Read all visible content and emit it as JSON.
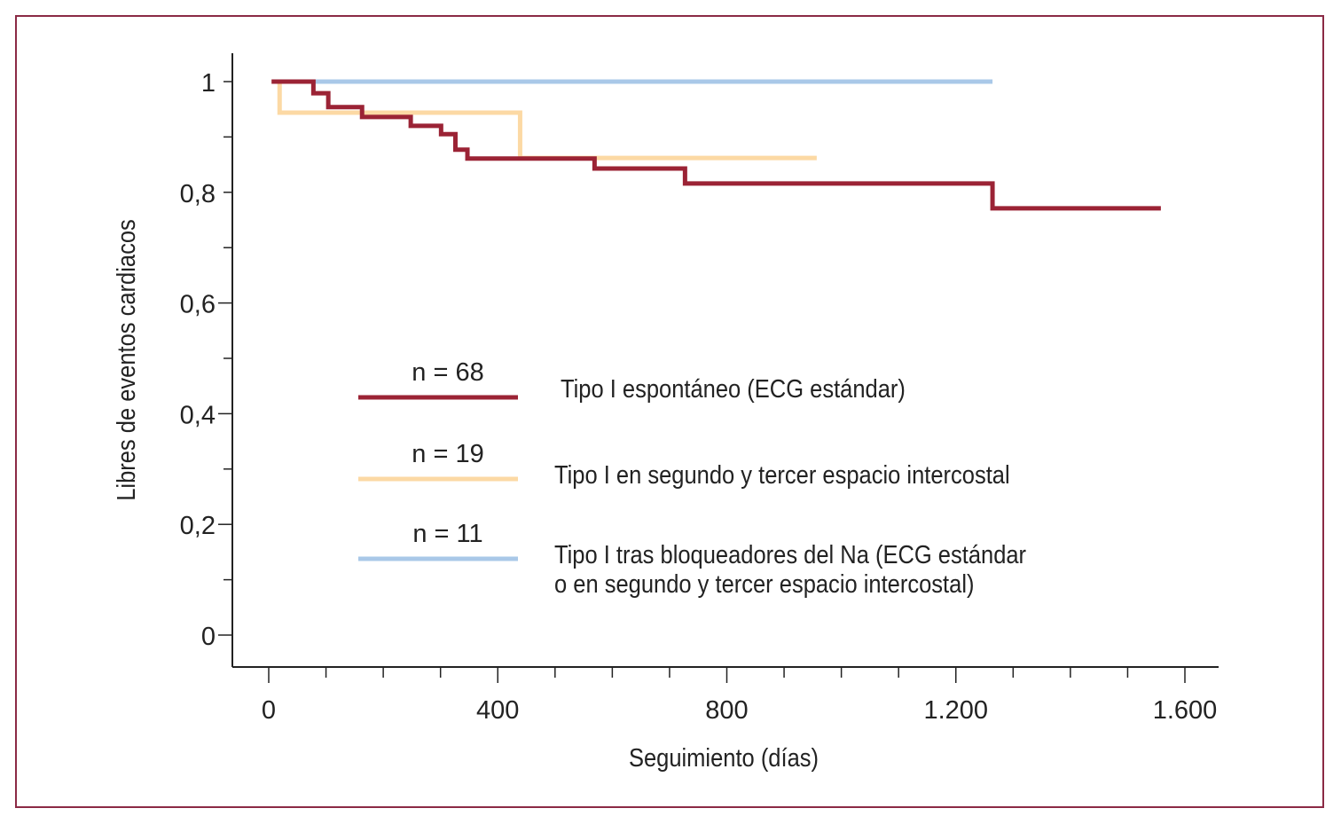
{
  "chart_data": {
    "type": "line",
    "step": true,
    "xlabel": "Seguimiento (días)",
    "ylabel": "Libres de eventos cardiacos",
    "xlim": [
      0,
      1600
    ],
    "ylim": [
      0,
      1
    ],
    "x_ticks": [
      0,
      400,
      800,
      1200,
      1600
    ],
    "x_tick_labels": [
      "0",
      "400",
      "800",
      "1.200",
      "1.600"
    ],
    "y_ticks": [
      0,
      0.2,
      0.4,
      0.6,
      0.8,
      1
    ],
    "y_tick_labels": [
      "0",
      "0,2",
      "0,4",
      "0,6",
      "0,8",
      "1"
    ],
    "grid": false,
    "legend_position": "center",
    "series": [
      {
        "name": "Tipo I espontáneo (ECG estándar)",
        "n_label": "n = 68",
        "color": "#9b2335",
        "x": [
          5,
          78,
          104,
          163,
          248,
          301,
          326,
          347,
          569,
          727,
          1264,
          1558
        ],
        "y": [
          1.0,
          0.979,
          0.954,
          0.936,
          0.92,
          0.905,
          0.877,
          0.861,
          0.843,
          0.816,
          0.771,
          0.771
        ]
      },
      {
        "name": "Tipo I en segundo y tercer espacio intercostal",
        "n_label": "n = 19",
        "color": "#fcd9a4",
        "x": [
          5,
          19,
          439,
          957
        ],
        "y": [
          1.0,
          0.944,
          0.862,
          0.862
        ]
      },
      {
        "name": "Tipo I tras bloqueadores del Na (ECG estándar o en segundo y tercer espacio intercostal)",
        "name_lines": [
          "Tipo I tras bloqueadores del Na (ECG estándar",
          "o en segundo y tercer espacio intercostal)"
        ],
        "n_label": "n = 11",
        "color": "#a9c8e8",
        "x": [
          5,
          1264
        ],
        "y": [
          1.0,
          1.0
        ]
      }
    ]
  }
}
